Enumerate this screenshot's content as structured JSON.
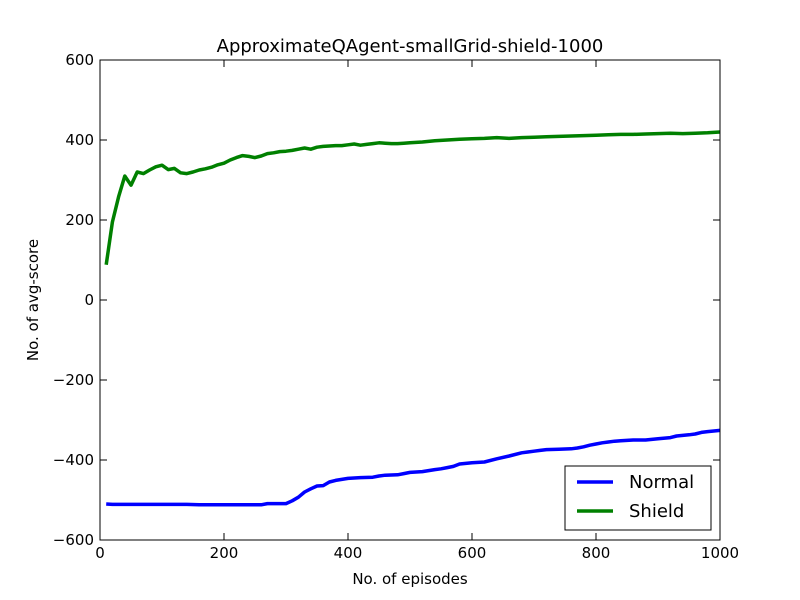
{
  "chart_data": {
    "type": "line",
    "title": "ApproximateQAgent-smallGrid-shield-1000",
    "xlabel": "No. of episodes",
    "ylabel": "No. of avg-score",
    "xlim": [
      0,
      1000
    ],
    "ylim": [
      -600,
      600
    ],
    "xticks": [
      0,
      200,
      400,
      600,
      800,
      1000
    ],
    "yticks": [
      -600,
      -400,
      -200,
      0,
      200,
      400,
      600
    ],
    "xtick_labels": [
      "0",
      "200",
      "400",
      "600",
      "800",
      "1000"
    ],
    "ytick_labels": [
      "−600",
      "−400",
      "−200",
      "0",
      "200",
      "400",
      "600"
    ],
    "grid": false,
    "legend": {
      "position": "bottom-right"
    },
    "series": [
      {
        "name": "Normal",
        "color": "#0000ff",
        "x": [
          10,
          20,
          30,
          40,
          50,
          60,
          80,
          100,
          120,
          140,
          160,
          180,
          200,
          220,
          240,
          260,
          270,
          280,
          300,
          310,
          320,
          330,
          340,
          350,
          360,
          370,
          380,
          400,
          420,
          440,
          450,
          460,
          480,
          490,
          500,
          520,
          540,
          550,
          560,
          570,
          580,
          600,
          620,
          640,
          660,
          680,
          690,
          700,
          710,
          720,
          740,
          760,
          770,
          780,
          790,
          800,
          810,
          820,
          830,
          840,
          850,
          860,
          880,
          900,
          920,
          930,
          950,
          960,
          970,
          980,
          1000
        ],
        "y": [
          -510,
          -511,
          -511,
          -511,
          -511,
          -511,
          -511,
          -511,
          -511,
          -511,
          -512,
          -512,
          -512,
          -512,
          -512,
          -512,
          -509,
          -509,
          -509,
          -502,
          -493,
          -480,
          -472,
          -465,
          -464,
          -455,
          -451,
          -446,
          -444,
          -443,
          -440,
          -438,
          -437,
          -434,
          -431,
          -429,
          -424,
          -422,
          -419,
          -416,
          -410,
          -407,
          -405,
          -397,
          -390,
          -382,
          -380,
          -378,
          -376,
          -374,
          -373,
          -372,
          -370,
          -367,
          -363,
          -360,
          -357,
          -355,
          -353,
          -352,
          -351,
          -350,
          -350,
          -347,
          -344,
          -340,
          -337,
          -335,
          -331,
          -329,
          -326
        ]
      },
      {
        "name": "Shield",
        "color": "#008000",
        "x": [
          10,
          20,
          30,
          40,
          50,
          60,
          70,
          80,
          90,
          100,
          110,
          120,
          130,
          140,
          150,
          160,
          170,
          180,
          190,
          200,
          210,
          220,
          230,
          240,
          250,
          260,
          270,
          280,
          290,
          300,
          310,
          320,
          330,
          340,
          350,
          360,
          370,
          380,
          390,
          400,
          410,
          420,
          430,
          440,
          450,
          460,
          470,
          480,
          490,
          500,
          520,
          540,
          560,
          580,
          600,
          620,
          640,
          660,
          680,
          700,
          720,
          740,
          760,
          780,
          800,
          820,
          840,
          860,
          880,
          900,
          920,
          940,
          960,
          980,
          1000
        ],
        "y": [
          88,
          195,
          258,
          310,
          287,
          320,
          316,
          325,
          333,
          337,
          326,
          329,
          318,
          316,
          320,
          325,
          328,
          332,
          338,
          342,
          350,
          356,
          361,
          359,
          356,
          360,
          366,
          368,
          371,
          372,
          374,
          377,
          380,
          377,
          382,
          384,
          385,
          386,
          386,
          388,
          390,
          387,
          389,
          391,
          393,
          392,
          391,
          391,
          392,
          393,
          395,
          398,
          400,
          402,
          403,
          404,
          406,
          404,
          406,
          407,
          408,
          409,
          410,
          411,
          412,
          413,
          414,
          414,
          415,
          416,
          417,
          416,
          417,
          418,
          420
        ]
      }
    ]
  }
}
